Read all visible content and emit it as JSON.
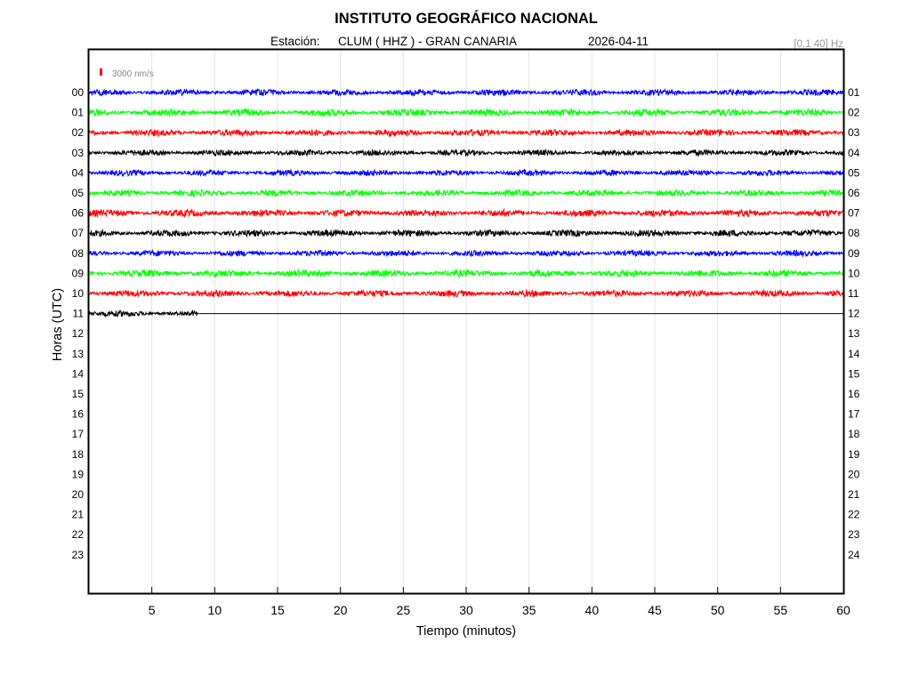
{
  "header": {
    "title": "INSTITUTO GEOGRÁFICO NACIONAL",
    "station_prefix": "Estación:",
    "station": "CLUM ( HHZ ) - GRAN CANARIA",
    "date": "2026-04-11",
    "filter_label": "[0.1 40] Hz"
  },
  "scale_label": "3000 nm/s",
  "colors": {
    "accent_scale": "#ff0000",
    "grid": "#e4e4e4",
    "filter_text": "#999999"
  },
  "chart_data": {
    "type": "line",
    "title": "INSTITUTO GEOGRÁFICO NACIONAL",
    "xlabel": "Tiempo (minutos)",
    "ylabel": "Horas (UTC)",
    "xlim": [
      0,
      60
    ],
    "x_ticks": [
      "5",
      "10",
      "15",
      "20",
      "25",
      "30",
      "35",
      "40",
      "45",
      "50",
      "55",
      "60"
    ],
    "left_hour_labels": [
      "00",
      "01",
      "02",
      "03",
      "04",
      "05",
      "06",
      "07",
      "08",
      "09",
      "10",
      "11",
      "12",
      "13",
      "14",
      "15",
      "16",
      "17",
      "18",
      "19",
      "20",
      "21",
      "22",
      "23"
    ],
    "right_hour_labels": [
      "01",
      "02",
      "03",
      "04",
      "05",
      "06",
      "07",
      "08",
      "09",
      "10",
      "11",
      "12",
      "13",
      "14",
      "15",
      "16",
      "17",
      "18",
      "19",
      "20",
      "21",
      "22",
      "23",
      "24"
    ],
    "grid": true,
    "trace_color_cycle": [
      "#0000ff",
      "#00ff00",
      "#ff0000",
      "#000000"
    ],
    "series": [
      {
        "hour": "00",
        "minutes_recorded": 60,
        "amplitude": 0.9
      },
      {
        "hour": "01",
        "minutes_recorded": 60,
        "amplitude": 1.0
      },
      {
        "hour": "02",
        "minutes_recorded": 60,
        "amplitude": 0.95
      },
      {
        "hour": "03",
        "minutes_recorded": 60,
        "amplitude": 0.85
      },
      {
        "hour": "04",
        "minutes_recorded": 60,
        "amplitude": 0.85
      },
      {
        "hour": "05",
        "minutes_recorded": 60,
        "amplitude": 0.9
      },
      {
        "hour": "06",
        "minutes_recorded": 60,
        "amplitude": 1.0
      },
      {
        "hour": "07",
        "minutes_recorded": 60,
        "amplitude": 0.95
      },
      {
        "hour": "08",
        "minutes_recorded": 60,
        "amplitude": 0.85
      },
      {
        "hour": "09",
        "minutes_recorded": 60,
        "amplitude": 1.0
      },
      {
        "hour": "10",
        "minutes_recorded": 60,
        "amplitude": 0.95
      },
      {
        "hour": "11",
        "minutes_recorded": 8.6,
        "amplitude": 0.9
      }
    ]
  }
}
